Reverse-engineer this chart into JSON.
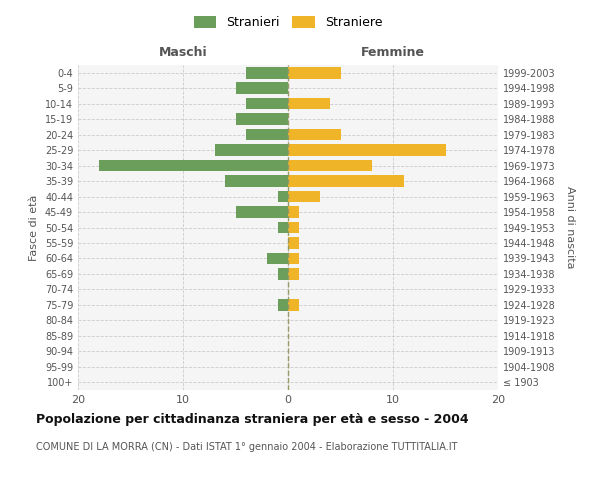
{
  "age_groups": [
    "100+",
    "95-99",
    "90-94",
    "85-89",
    "80-84",
    "75-79",
    "70-74",
    "65-69",
    "60-64",
    "55-59",
    "50-54",
    "45-49",
    "40-44",
    "35-39",
    "30-34",
    "25-29",
    "20-24",
    "15-19",
    "10-14",
    "5-9",
    "0-4"
  ],
  "birth_years": [
    "≤ 1903",
    "1904-1908",
    "1909-1913",
    "1914-1918",
    "1919-1923",
    "1924-1928",
    "1929-1933",
    "1934-1938",
    "1939-1943",
    "1944-1948",
    "1949-1953",
    "1954-1958",
    "1959-1963",
    "1964-1968",
    "1969-1973",
    "1974-1978",
    "1979-1983",
    "1984-1988",
    "1989-1993",
    "1994-1998",
    "1999-2003"
  ],
  "maschi": [
    0,
    0,
    0,
    0,
    0,
    1,
    0,
    1,
    2,
    0,
    1,
    5,
    1,
    6,
    18,
    7,
    4,
    5,
    4,
    5,
    4
  ],
  "femmine": [
    0,
    0,
    0,
    0,
    0,
    1,
    0,
    1,
    1,
    1,
    1,
    1,
    3,
    11,
    8,
    15,
    5,
    0,
    4,
    0,
    5
  ],
  "maschi_color": "#6a9e5a",
  "femmine_color": "#f0b429",
  "bg_color": "#f5f5f5",
  "grid_color": "#cccccc",
  "dashed_color": "#999966",
  "title": "Popolazione per cittadinanza straniera per età e sesso - 2004",
  "subtitle": "COMUNE DI LA MORRA (CN) - Dati ISTAT 1° gennaio 2004 - Elaborazione TUTTITALIA.IT",
  "xlabel_left": "Maschi",
  "xlabel_right": "Femmine",
  "ylabel_left": "Fasce di età",
  "ylabel_right": "Anni di nascita",
  "legend_stranieri": "Stranieri",
  "legend_straniere": "Straniere",
  "xlim": 20
}
